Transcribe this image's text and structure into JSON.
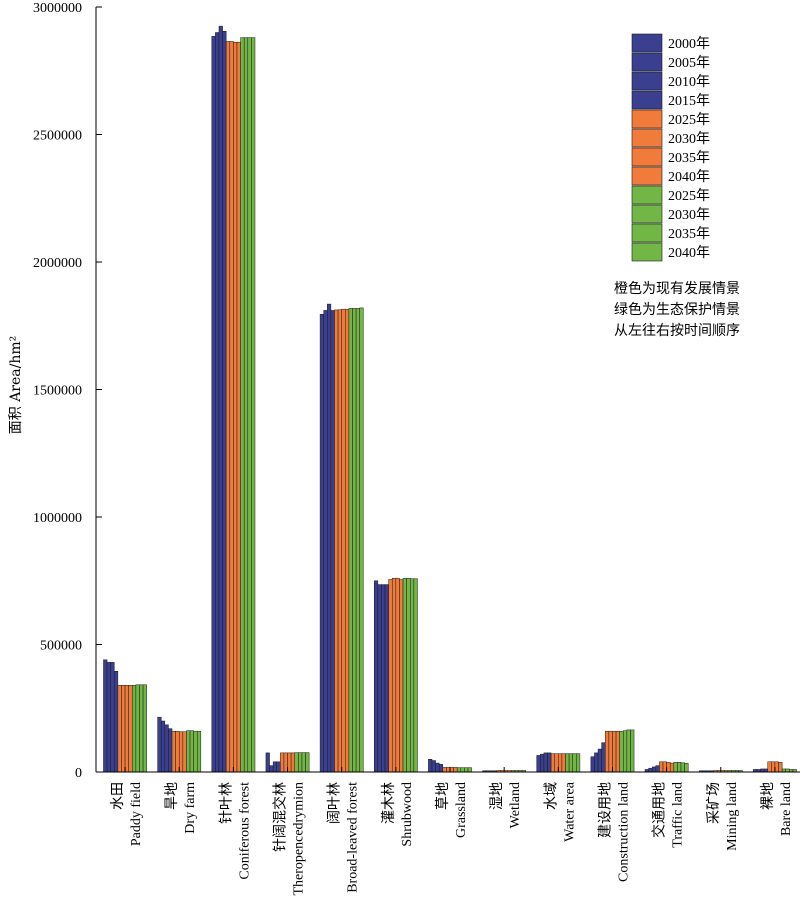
{
  "chart_data": {
    "type": "bar",
    "ylabel": "面积 Area/hm²",
    "ylim": [
      0,
      3000000
    ],
    "yticks": [
      0,
      500000,
      1000000,
      1500000,
      2000000,
      2500000,
      3000000
    ],
    "ytick_labels": [
      "0",
      "500000",
      "1000000",
      "1500000",
      "2000000",
      "2500000",
      "3000000"
    ],
    "grid": false,
    "legend_position": "top-right",
    "categories": [
      {
        "zh": "水田",
        "en": "Paddy field"
      },
      {
        "zh": "旱地",
        "en": "Dry farm"
      },
      {
        "zh": "针叶林",
        "en": "Coniferous forest"
      },
      {
        "zh": "针阔混交林",
        "en": "Theropencedrymion"
      },
      {
        "zh": "阔叶林",
        "en": "Broad-leaved forest"
      },
      {
        "zh": "灌木林",
        "en": "Shrubwood"
      },
      {
        "zh": "草地",
        "en": "Grassland"
      },
      {
        "zh": "湿地",
        "en": "Wetland"
      },
      {
        "zh": "水域",
        "en": "Water area"
      },
      {
        "zh": "建设用地",
        "en": "Construction land"
      },
      {
        "zh": "交通用地",
        "en": "Traffic land"
      },
      {
        "zh": "采矿场",
        "en": "Mining land"
      },
      {
        "zh": "裸地",
        "en": "Bare land"
      }
    ],
    "series": [
      {
        "name": "2000年",
        "color": "#3a3f8f",
        "values": [
          440000,
          215000,
          2885000,
          75000,
          1795000,
          750000,
          50000,
          5000,
          65000,
          60000,
          10000,
          5000,
          10000
        ]
      },
      {
        "name": "2005年",
        "color": "#3a3f8f",
        "values": [
          430000,
          200000,
          2900000,
          25000,
          1810000,
          735000,
          45000,
          5000,
          70000,
          75000,
          15000,
          5000,
          10000
        ]
      },
      {
        "name": "2010年",
        "color": "#3a3f8f",
        "values": [
          430000,
          185000,
          2925000,
          40000,
          1835000,
          735000,
          35000,
          5000,
          75000,
          90000,
          20000,
          5000,
          12000
        ]
      },
      {
        "name": "2015年",
        "color": "#3a3f8f",
        "values": [
          395000,
          170000,
          2905000,
          40000,
          1810000,
          735000,
          30000,
          5000,
          75000,
          115000,
          25000,
          5000,
          12000
        ]
      },
      {
        "name": "2025年",
        "color": "#f07b3a",
        "values": [
          340000,
          160000,
          2865000,
          75000,
          1812000,
          755000,
          18000,
          6000,
          72000,
          160000,
          40000,
          6000,
          40000
        ]
      },
      {
        "name": "2030年",
        "color": "#f07b3a",
        "values": [
          340000,
          160000,
          2865000,
          75000,
          1813000,
          760000,
          18000,
          6000,
          72000,
          160000,
          40000,
          6000,
          40000
        ]
      },
      {
        "name": "2035年",
        "color": "#f07b3a",
        "values": [
          340000,
          158000,
          2862000,
          75000,
          1815000,
          760000,
          18000,
          6000,
          72000,
          160000,
          38000,
          6000,
          40000
        ]
      },
      {
        "name": "2040年",
        "color": "#f07b3a",
        "values": [
          340000,
          158000,
          2862000,
          75000,
          1815000,
          755000,
          18000,
          6000,
          72000,
          160000,
          35000,
          6000,
          38000
        ]
      },
      {
        "name": "2025年",
        "color": "#72b645",
        "values": [
          340000,
          162000,
          2880000,
          76000,
          1818000,
          760000,
          17000,
          6000,
          72000,
          160000,
          38000,
          6000,
          12000
        ]
      },
      {
        "name": "2030年",
        "color": "#72b645",
        "values": [
          342000,
          162000,
          2880000,
          76000,
          1818000,
          760000,
          17000,
          6000,
          72000,
          162000,
          38000,
          6000,
          12000
        ]
      },
      {
        "name": "2035年",
        "color": "#72b645",
        "values": [
          342000,
          160000,
          2880000,
          76000,
          1818000,
          758000,
          17000,
          6000,
          72000,
          165000,
          36000,
          6000,
          10000
        ]
      },
      {
        "name": "2040年",
        "color": "#72b645",
        "values": [
          342000,
          160000,
          2880000,
          76000,
          1820000,
          758000,
          17000,
          6000,
          72000,
          165000,
          34000,
          6000,
          10000
        ]
      }
    ],
    "annotations": [
      "橙色为现有发展情景",
      "绿色为生态保护情景",
      "从左往右按时间顺序"
    ]
  }
}
